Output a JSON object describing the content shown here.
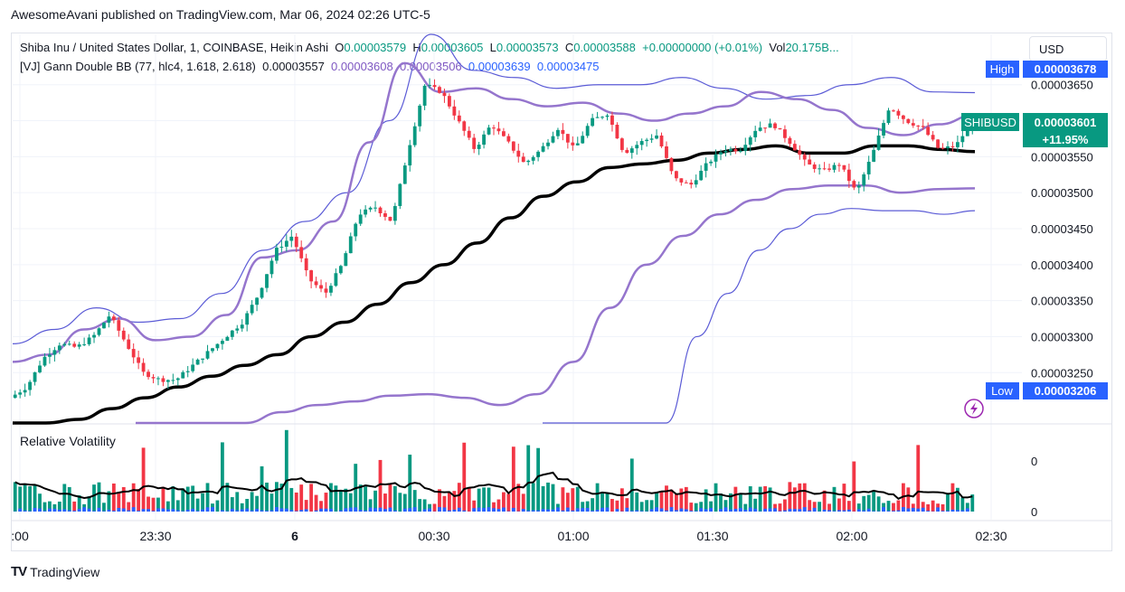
{
  "header": {
    "publisher": "AwesomeAvani published on TradingView.com, Mar 06, 2024 02:26 UTC-5"
  },
  "legend": {
    "symbol": "Shiba Inu / United States Dollar, 1, COINBASE, Heikin Ashi",
    "o_label": "O",
    "o": "0.00003579",
    "h_label": "H",
    "h": "0.00003605",
    "l_label": "L",
    "l": "0.00003573",
    "c_label": "C",
    "c": "0.00003588",
    "change": "+0.00000000 (+0.01%)",
    "vol_label": "Vol",
    "vol": "20.175B...",
    "indicator": "[VJ] Gann Double BB (77, hlc4, 1.618, 2.618)",
    "ind_v1": "0.00003557",
    "ind_v2": "0.00003608",
    "ind_v3": "0.00003506",
    "ind_v4": "0.00003639",
    "ind_v5": "0.00003475"
  },
  "currency": "USD",
  "markers": {
    "high_label": "High",
    "high_value": "0.00003678",
    "low_label": "Low",
    "low_value": "0.00003206",
    "symbol_tag": "SHIBUSD",
    "last_price": "0.00003601",
    "last_change": "+11.95%"
  },
  "pane2": {
    "title": "Relative Volatility",
    "axis_ticks": [
      "0",
      "0"
    ]
  },
  "footer": {
    "brand": "TradingView"
  },
  "colors": {
    "up": "#089981",
    "down": "#f23645",
    "inner_band": "#9575cd",
    "outer_band": "#5b5bd6",
    "basis": "#000000",
    "vol_up": "#089981",
    "vol_down": "#f23645",
    "vol_blue": "#2962ff",
    "high_tag": "#2962ff"
  },
  "chart_data": {
    "type": "candlestick",
    "price_axis": {
      "ticks": [
        "0.00003650",
        "0.00003600",
        "0.00003550",
        "0.00003500",
        "0.00003450",
        "0.00003400",
        "0.00003350",
        "0.00003300",
        "0.00003250"
      ],
      "range": [
        3.18e-05,
        3.72e-05
      ]
    },
    "time_axis": {
      "ticks": [
        ":00",
        "23:30",
        "6",
        "00:30",
        "01:00",
        "01:30",
        "02:00",
        "02:30"
      ]
    },
    "close_path": [
      3215,
      3230,
      3270,
      3290,
      3285,
      3300,
      3330,
      3290,
      3250,
      3240,
      3240,
      3260,
      3280,
      3300,
      3320,
      3360,
      3420,
      3440,
      3380,
      3360,
      3400,
      3470,
      3480,
      3460,
      3560,
      3650,
      3640,
      3600,
      3560,
      3595,
      3570,
      3540,
      3560,
      3590,
      3560,
      3600,
      3610,
      3555,
      3570,
      3580,
      3520,
      3510,
      3540,
      3560,
      3560,
      3590,
      3595,
      3570,
      3540,
      3530,
      3540,
      3500,
      3555,
      3620,
      3600,
      3590,
      3560,
      3565,
      3600
    ],
    "basis_path": [
      3145,
      3160,
      3185,
      3200,
      3215,
      3230,
      3245,
      3260,
      3275,
      3300,
      3320,
      3345,
      3375,
      3400,
      3430,
      3465,
      3495,
      3515,
      3535,
      3540,
      3545,
      3555,
      3560,
      3565,
      3555,
      3555,
      3565,
      3565,
      3560,
      3557
    ],
    "upper_inner": [
      3265,
      3275,
      3310,
      3325,
      3295,
      3300,
      3330,
      3410,
      3420,
      3460,
      3570,
      3680,
      3640,
      3645,
      3630,
      3620,
      3625,
      3610,
      3600,
      3610,
      3620,
      3640,
      3630,
      3615,
      3590,
      3580,
      3595,
      3608
    ],
    "lower_inner": [
      3000,
      3060,
      3100,
      3165,
      3195,
      3205,
      3210,
      3218,
      3220,
      3215,
      3205,
      3220,
      3265,
      3340,
      3400,
      3440,
      3470,
      3490,
      3505,
      3510,
      3510,
      3500,
      3505,
      3506
    ],
    "upper_outer": [
      3290,
      3310,
      3340,
      3320,
      3325,
      3360,
      3420,
      3460,
      3500,
      3600,
      3720,
      3670,
      3660,
      3645,
      3650,
      3650,
      3660,
      3645,
      3630,
      3635,
      3650,
      3660,
      3640,
      3639
    ],
    "lower_outer": [
      2900,
      2950,
      3000,
      3080,
      3180,
      3300,
      3360,
      3420,
      3450,
      3470,
      3478,
      3475,
      3475,
      3470,
      3475
    ]
  }
}
